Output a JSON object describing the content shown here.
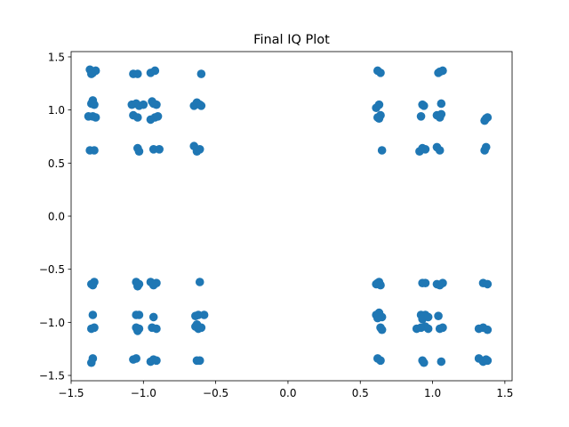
{
  "chart_data": {
    "type": "scatter",
    "title": "Final IQ Plot",
    "xlabel": "",
    "ylabel": "",
    "xlim": [
      -1.5,
      1.55
    ],
    "ylim": [
      -1.55,
      1.55
    ],
    "xticks": [
      -1.5,
      -1.0,
      -0.5,
      0.0,
      0.5,
      1.0,
      1.5
    ],
    "xtick_labels": [
      "−1.5",
      "−1.0",
      "−0.5",
      "0.0",
      "0.5",
      "1.0",
      "1.5"
    ],
    "yticks": [
      -1.5,
      -1.0,
      -0.5,
      0.0,
      0.5,
      1.0,
      1.5
    ],
    "ytick_labels": [
      "−1.5",
      "−1.0",
      "−0.5",
      "0.0",
      "0.5",
      "1.0",
      "1.5"
    ],
    "grid": false,
    "marker_color": "#1f77b4",
    "series": [
      {
        "points": [
          [
            -1.37,
            1.38
          ],
          [
            -1.35,
            1.35
          ],
          [
            -1.33,
            1.37
          ],
          [
            -1.36,
            1.34
          ],
          [
            -1.07,
            1.34
          ],
          [
            -1.04,
            1.34
          ],
          [
            -0.95,
            1.35
          ],
          [
            -0.92,
            1.37
          ],
          [
            -0.6,
            1.34
          ],
          [
            0.62,
            1.37
          ],
          [
            0.64,
            1.35
          ],
          [
            1.04,
            1.35
          ],
          [
            1.07,
            1.37
          ],
          [
            1.05,
            1.36
          ],
          [
            -1.35,
            1.09
          ],
          [
            -1.36,
            1.06
          ],
          [
            -1.34,
            1.05
          ],
          [
            -1.08,
            1.05
          ],
          [
            -1.05,
            1.06
          ],
          [
            -1.03,
            1.04
          ],
          [
            -1.0,
            1.05
          ],
          [
            -0.94,
            1.08
          ],
          [
            -0.91,
            1.05
          ],
          [
            -0.93,
            1.06
          ],
          [
            -0.65,
            1.04
          ],
          [
            -0.63,
            1.07
          ],
          [
            -0.61,
            1.05
          ],
          [
            -0.6,
            1.04
          ],
          [
            0.61,
            1.02
          ],
          [
            0.63,
            1.05
          ],
          [
            0.93,
            1.05
          ],
          [
            0.94,
            1.04
          ],
          [
            1.06,
            1.06
          ],
          [
            -1.38,
            0.94
          ],
          [
            -1.35,
            0.94
          ],
          [
            -1.33,
            0.93
          ],
          [
            -1.07,
            0.95
          ],
          [
            -1.04,
            0.93
          ],
          [
            -0.95,
            0.91
          ],
          [
            -0.92,
            0.93
          ],
          [
            -0.9,
            0.94
          ],
          [
            0.62,
            0.93
          ],
          [
            0.64,
            0.95
          ],
          [
            0.63,
            0.92
          ],
          [
            0.92,
            0.94
          ],
          [
            1.03,
            0.95
          ],
          [
            1.05,
            0.93
          ],
          [
            1.06,
            0.96
          ],
          [
            1.36,
            0.9
          ],
          [
            1.38,
            0.93
          ],
          [
            1.37,
            0.92
          ],
          [
            -1.37,
            0.62
          ],
          [
            -1.34,
            0.62
          ],
          [
            -1.04,
            0.64
          ],
          [
            -1.03,
            0.61
          ],
          [
            -0.93,
            0.63
          ],
          [
            -0.89,
            0.63
          ],
          [
            -0.65,
            0.66
          ],
          [
            -0.63,
            0.61
          ],
          [
            -0.61,
            0.63
          ],
          [
            0.65,
            0.62
          ],
          [
            0.91,
            0.61
          ],
          [
            0.93,
            0.64
          ],
          [
            0.95,
            0.63
          ],
          [
            1.03,
            0.65
          ],
          [
            1.05,
            0.62
          ],
          [
            1.36,
            0.62
          ],
          [
            1.37,
            0.65
          ],
          [
            -1.34,
            -0.62
          ],
          [
            -1.36,
            -0.64
          ],
          [
            -1.35,
            -0.65
          ],
          [
            -1.05,
            -0.62
          ],
          [
            -1.04,
            -0.66
          ],
          [
            -1.03,
            -0.64
          ],
          [
            -0.95,
            -0.62
          ],
          [
            -0.93,
            -0.65
          ],
          [
            -0.91,
            -0.63
          ],
          [
            -0.61,
            -0.62
          ],
          [
            0.61,
            -0.64
          ],
          [
            0.63,
            -0.62
          ],
          [
            0.64,
            -0.65
          ],
          [
            0.62,
            -0.63
          ],
          [
            0.93,
            -0.63
          ],
          [
            0.95,
            -0.63
          ],
          [
            1.03,
            -0.64
          ],
          [
            1.05,
            -0.65
          ],
          [
            1.07,
            -0.63
          ],
          [
            1.35,
            -0.63
          ],
          [
            1.38,
            -0.64
          ],
          [
            -1.35,
            -0.93
          ],
          [
            -1.05,
            -0.93
          ],
          [
            -1.03,
            -0.93
          ],
          [
            -0.93,
            -0.95
          ],
          [
            -0.64,
            -0.94
          ],
          [
            -0.62,
            -0.93
          ],
          [
            -0.58,
            -0.93
          ],
          [
            0.61,
            -0.93
          ],
          [
            0.63,
            -0.91
          ],
          [
            0.65,
            -0.95
          ],
          [
            0.62,
            -0.96
          ],
          [
            0.92,
            -0.93
          ],
          [
            0.95,
            -0.93
          ],
          [
            0.93,
            -0.97
          ],
          [
            0.97,
            -0.95
          ],
          [
            1.04,
            -0.94
          ],
          [
            -1.36,
            -1.06
          ],
          [
            -1.34,
            -1.05
          ],
          [
            -1.05,
            -1.05
          ],
          [
            -1.04,
            -1.08
          ],
          [
            -1.03,
            -1.06
          ],
          [
            -0.94,
            -1.05
          ],
          [
            -0.91,
            -1.06
          ],
          [
            -0.64,
            -1.04
          ],
          [
            -0.62,
            -1.06
          ],
          [
            -0.6,
            -1.05
          ],
          [
            -0.63,
            -1.02
          ],
          [
            0.64,
            -1.05
          ],
          [
            0.65,
            -1.07
          ],
          [
            0.89,
            -1.06
          ],
          [
            0.92,
            -1.05
          ],
          [
            0.95,
            -1.04
          ],
          [
            0.97,
            -1.06
          ],
          [
            1.05,
            -1.06
          ],
          [
            1.07,
            -1.05
          ],
          [
            1.32,
            -1.06
          ],
          [
            1.35,
            -1.05
          ],
          [
            1.38,
            -1.07
          ],
          [
            -1.36,
            -1.38
          ],
          [
            -1.35,
            -1.34
          ],
          [
            -1.07,
            -1.35
          ],
          [
            -1.05,
            -1.34
          ],
          [
            -0.95,
            -1.37
          ],
          [
            -0.93,
            -1.35
          ],
          [
            -0.91,
            -1.36
          ],
          [
            -0.63,
            -1.36
          ],
          [
            -0.61,
            -1.36
          ],
          [
            0.62,
            -1.34
          ],
          [
            0.64,
            -1.36
          ],
          [
            0.93,
            -1.36
          ],
          [
            0.94,
            -1.38
          ],
          [
            1.06,
            -1.37
          ],
          [
            1.32,
            -1.34
          ],
          [
            1.35,
            -1.37
          ],
          [
            1.37,
            -1.35
          ],
          [
            1.38,
            -1.36
          ]
        ]
      }
    ]
  }
}
